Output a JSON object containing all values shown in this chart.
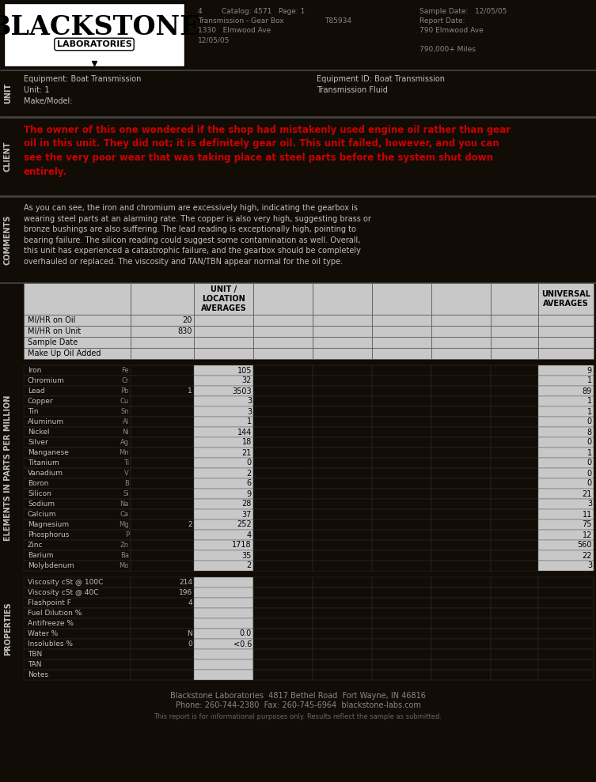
{
  "bg_color": "#120c06",
  "light_gray": "#c8c8c8",
  "dark_gray": "#555555",
  "white": "#ffffff",
  "black": "#000000",
  "red_text": "#cc0000",
  "text_light": "#c0c0c0",
  "client_text": "The owner of this one wondered if the shop had mistakenly used engine oil rather than gear\noil in this unit. They did not; it is definitely gear oil. This unit failed, however, and you can\nsee the very poor wear that was taking place at steel parts before the system shut down\nentirely.",
  "comments_text": "As you can see, the iron and chromium are excessively high, indicating the gearbox is\nwearing steel parts at an alarming rate. The copper is also very high, suggesting brass or\nbronze bushings are also suffering. The lead reading is exceptionally high, pointing to\nbearing failure. The silicon reading could suggest some contamination as well. Overall,\nthis unit has experienced a catastrophic failure, and the gearbox should be completely\noverhauled or replaced. The viscosity and TAN/TBN appear normal for the oil type.",
  "mi_hr_oil": "20",
  "mi_hr_unit": "830",
  "sample_date": "",
  "makeup_oil": "",
  "elements": [
    {
      "label": "Iron",
      "abbr": "Fe",
      "prev": "",
      "value": "105",
      "universal": "9"
    },
    {
      "label": "Chromium",
      "abbr": "Cr",
      "prev": "",
      "value": "32",
      "universal": "1"
    },
    {
      "label": "Lead",
      "abbr": "Pb",
      "prev": "1",
      "value": "3503",
      "universal": "89"
    },
    {
      "label": "Copper",
      "abbr": "Cu",
      "prev": "",
      "value": "3",
      "universal": "1"
    },
    {
      "label": "Tin",
      "abbr": "Sn",
      "prev": "",
      "value": "3",
      "universal": "1"
    },
    {
      "label": "Aluminum",
      "abbr": "Al",
      "prev": "",
      "value": "1",
      "universal": "0"
    },
    {
      "label": "Nickel",
      "abbr": "Ni",
      "prev": "",
      "value": "144",
      "universal": "8"
    },
    {
      "label": "Silver",
      "abbr": "Ag",
      "prev": "",
      "value": "18",
      "universal": "0"
    },
    {
      "label": "Manganese",
      "abbr": "Mn",
      "prev": "",
      "value": "21",
      "universal": "1"
    },
    {
      "label": "Titanium",
      "abbr": "Ti",
      "prev": "",
      "value": "0",
      "universal": "0"
    },
    {
      "label": "Vanadium",
      "abbr": "V",
      "prev": "",
      "value": "2",
      "universal": "0"
    },
    {
      "label": "Boron",
      "abbr": "B",
      "prev": "",
      "value": "6",
      "universal": "0"
    },
    {
      "label": "Silicon",
      "abbr": "Si",
      "prev": "",
      "value": "9",
      "universal": "21"
    },
    {
      "label": "Sodium",
      "abbr": "Na",
      "prev": "",
      "value": "28",
      "universal": "3"
    },
    {
      "label": "Calcium",
      "abbr": "Ca",
      "prev": "",
      "value": "37",
      "universal": "11"
    },
    {
      "label": "Magnesium",
      "abbr": "Mg",
      "prev": "2",
      "value": "252",
      "universal": "75"
    },
    {
      "label": "Phosphorus",
      "abbr": "P",
      "prev": "",
      "value": "4",
      "universal": "12"
    },
    {
      "label": "Zinc",
      "abbr": "Zn",
      "prev": "",
      "value": "1718",
      "universal": "560"
    },
    {
      "label": "Barium",
      "abbr": "Ba",
      "prev": "",
      "value": "35",
      "universal": "22"
    },
    {
      "label": "Molybdenum",
      "abbr": "Mo",
      "prev": "",
      "value": "2",
      "universal": "3"
    }
  ],
  "properties": [
    {
      "label": "Viscosity cSt @ 100C",
      "prev": "214",
      "value": "",
      "universal": ""
    },
    {
      "label": "Viscosity cSt @ 40C",
      "prev": "196",
      "value": "",
      "universal": ""
    },
    {
      "label": "Flashpoint F",
      "prev": "4",
      "value": "",
      "universal": ""
    },
    {
      "label": "Fuel Dilution %",
      "prev": "",
      "value": "",
      "universal": ""
    },
    {
      "label": "Antifreeze %",
      "prev": "",
      "value": "",
      "universal": ""
    },
    {
      "label": "Water %",
      "prev": "N",
      "value": "0.0",
      "universal": ""
    },
    {
      "label": "Insolubles %",
      "prev": "0",
      "value": "<0.6",
      "universal": ""
    },
    {
      "label": "TBN",
      "prev": "",
      "value": "",
      "universal": ""
    },
    {
      "label": "TAN",
      "prev": "",
      "value": "",
      "universal": ""
    },
    {
      "label": "Notes",
      "prev": "",
      "value": "",
      "universal": ""
    }
  ],
  "footer1": "Blackstone Laboratories  4817 Bethel Road  Fort Wayne, IN 46816",
  "footer2": "Phone: 260-744-2380  Fax: 260-745-6964  blackstone-labs.com",
  "footer3": "This report is for informational purposes only. Results reflect the sample as submitted."
}
